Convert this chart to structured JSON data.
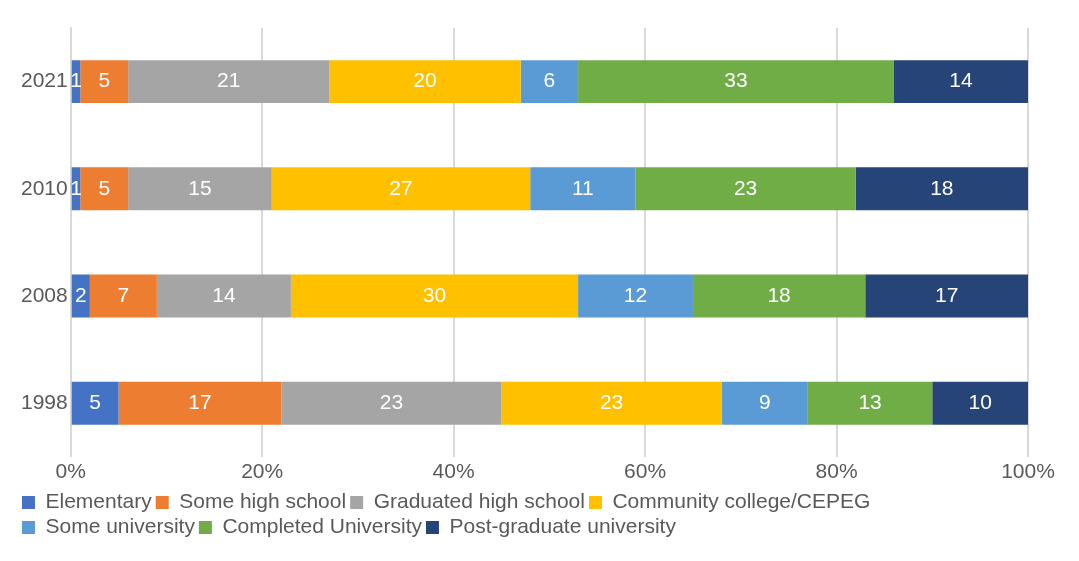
{
  "chart_data": {
    "type": "bar",
    "orientation": "horizontal",
    "stacked": true,
    "categories": [
      "2021",
      "2010",
      "2008",
      "1998"
    ],
    "series": [
      {
        "name": "Elementary",
        "color": "#4472c4",
        "values": [
          1,
          1,
          2,
          5
        ]
      },
      {
        "name": "Some high school",
        "color": "#ed7d31",
        "values": [
          5,
          5,
          7,
          17
        ]
      },
      {
        "name": "Graduated high school",
        "color": "#a5a5a5",
        "values": [
          21,
          15,
          14,
          23
        ]
      },
      {
        "name": "Community college/CEPEG",
        "color": "#ffc000",
        "values": [
          20,
          27,
          30,
          23
        ]
      },
      {
        "name": "Some university",
        "color": "#5b9bd5",
        "values": [
          6,
          11,
          12,
          9
        ]
      },
      {
        "name": "Completed University",
        "color": "#70ad47",
        "values": [
          33,
          23,
          18,
          13
        ]
      },
      {
        "name": "Post-graduate university",
        "color": "#264478",
        "values": [
          14,
          18,
          17,
          10
        ]
      }
    ],
    "xlim": [
      0,
      100
    ],
    "xticks": [
      {
        "value": 0,
        "label": "0%"
      },
      {
        "value": 20,
        "label": "20%"
      },
      {
        "value": 40,
        "label": "40%"
      },
      {
        "value": 60,
        "label": "60%"
      },
      {
        "value": 80,
        "label": "80%"
      },
      {
        "value": 100,
        "label": "100%"
      }
    ],
    "grid": "x",
    "legend": "bottom",
    "data_labels": true
  }
}
